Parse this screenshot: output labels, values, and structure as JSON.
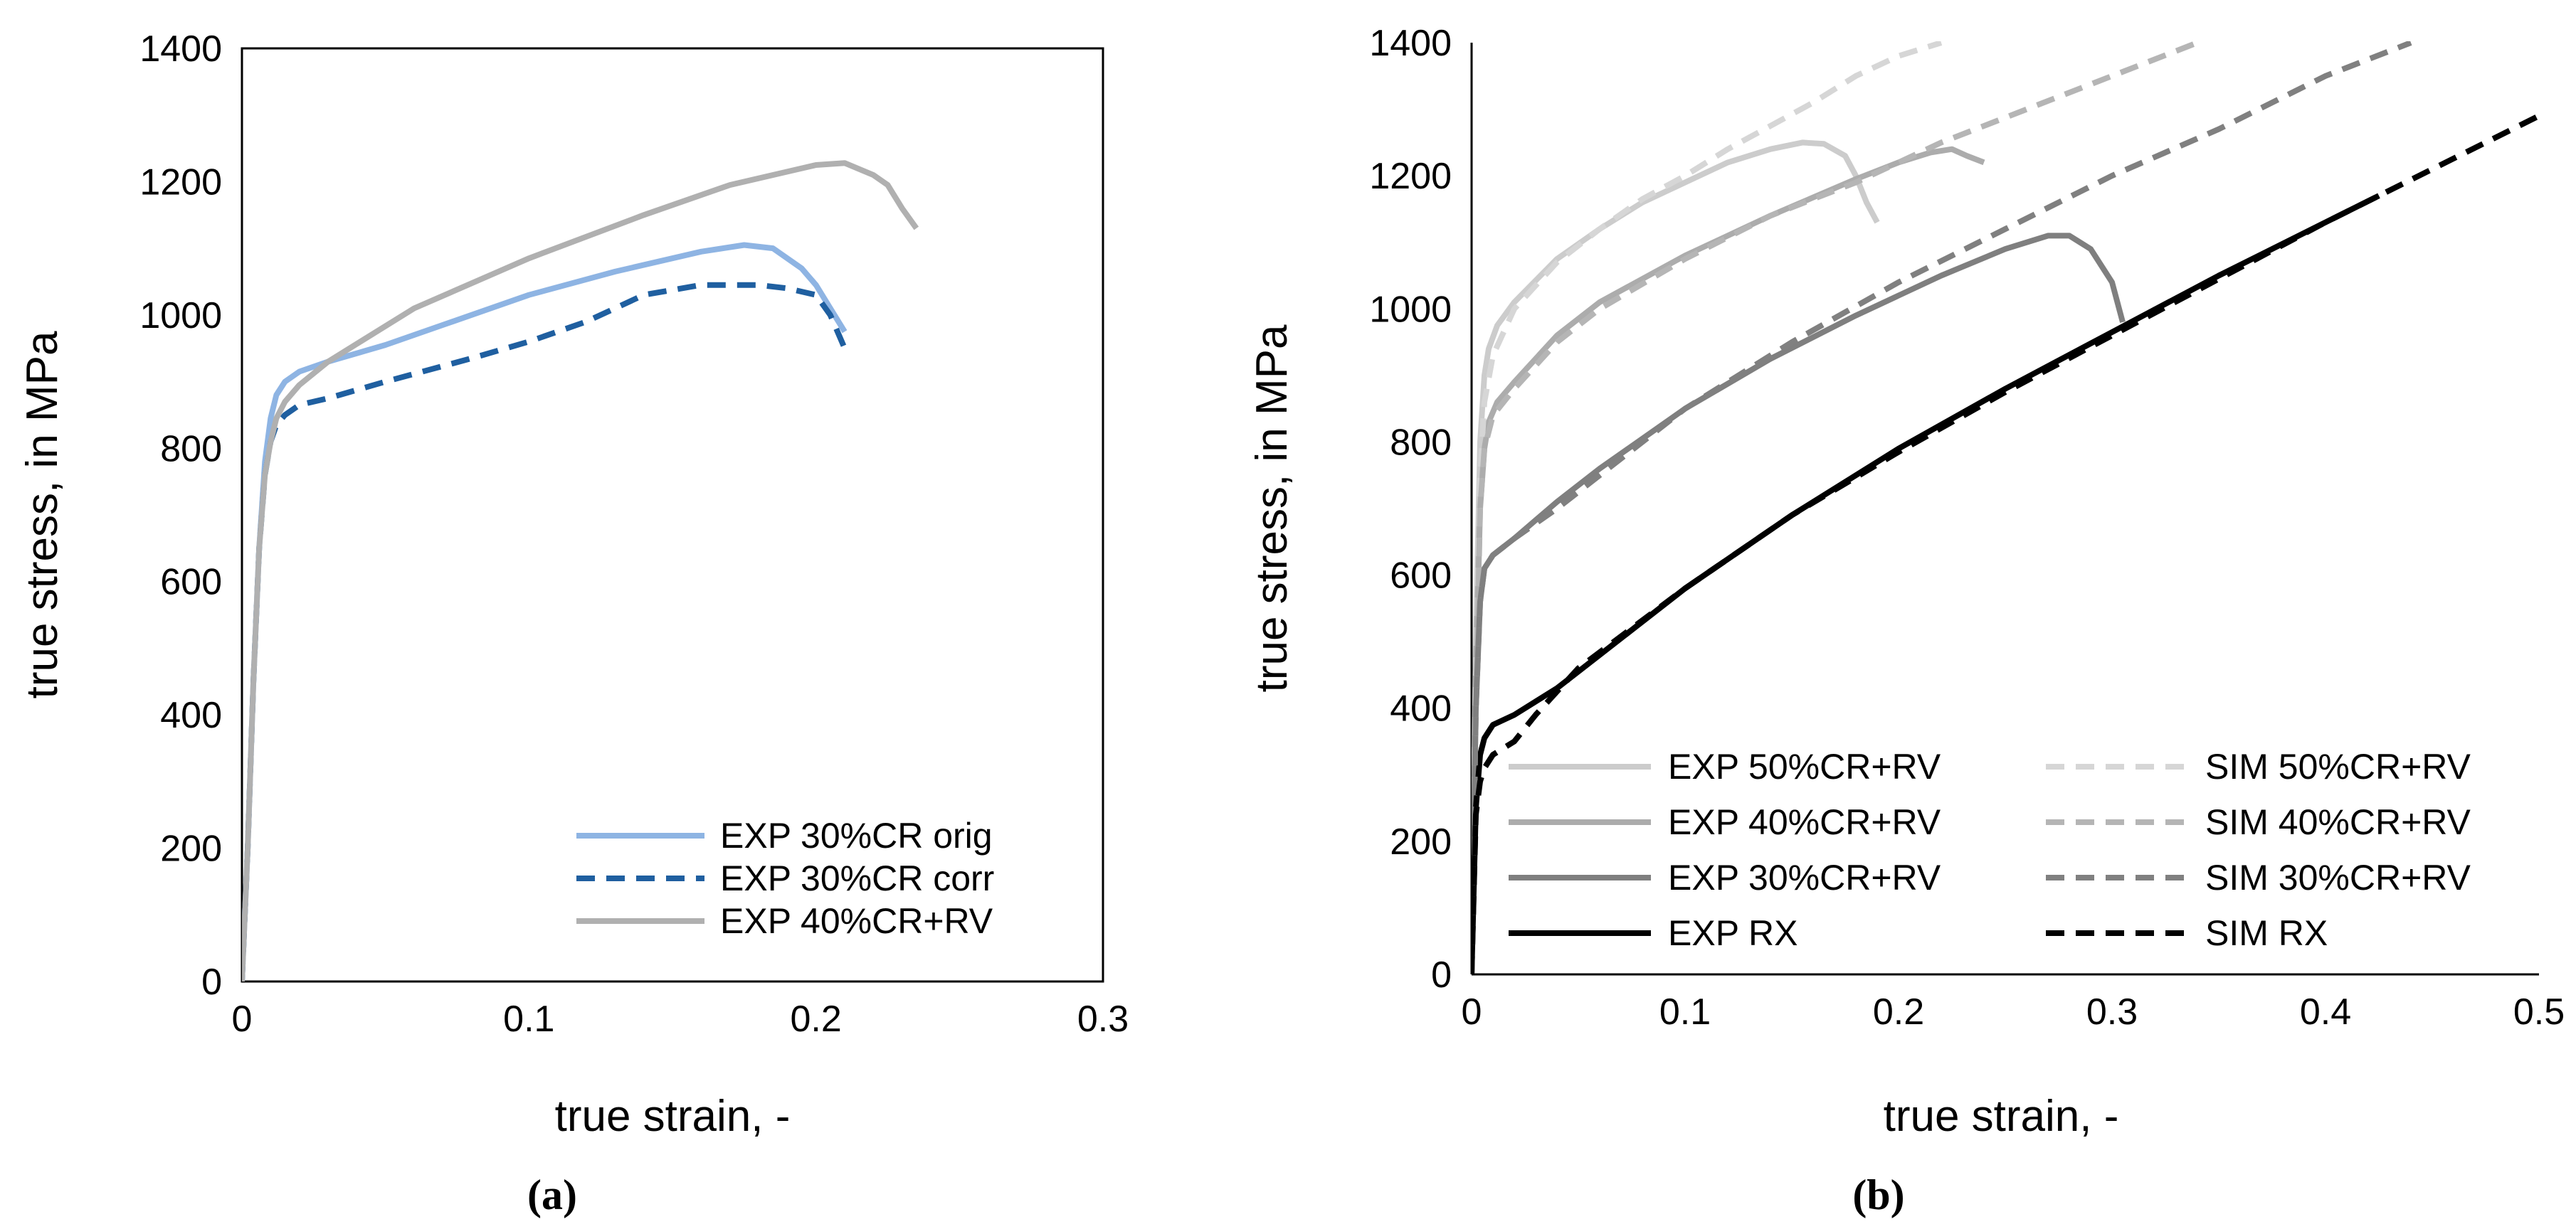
{
  "chart_data": [
    {
      "type": "line",
      "panel_label": "(a)",
      "xlabel": "true strain, -",
      "ylabel": "true stress, in MPa",
      "xlim": [
        0,
        0.3
      ],
      "ylim": [
        0,
        1400
      ],
      "xticks": [
        "0",
        "0.1",
        "0.2",
        "0.3"
      ],
      "yticks": [
        "0",
        "200",
        "400",
        "600",
        "800",
        "1000",
        "1200",
        "1400"
      ],
      "grid": false,
      "legend": "bottom-right",
      "series": [
        {
          "name": "EXP 30%CR orig",
          "color": "#8eb4e3",
          "dash": "solid",
          "x": [
            0,
            0.002,
            0.004,
            0.006,
            0.008,
            0.01,
            0.012,
            0.015,
            0.02,
            0.03,
            0.05,
            0.07,
            0.1,
            0.13,
            0.16,
            0.175,
            0.185,
            0.195,
            0.2,
            0.205,
            0.21
          ],
          "y": [
            0,
            200,
            450,
            650,
            780,
            845,
            880,
            900,
            915,
            930,
            955,
            985,
            1030,
            1065,
            1095,
            1105,
            1100,
            1070,
            1045,
            1010,
            975
          ]
        },
        {
          "name": "EXP 30%CR corr",
          "color": "#1f5fa0",
          "dash": "dashed",
          "x": [
            0,
            0.002,
            0.004,
            0.006,
            0.008,
            0.01,
            0.012,
            0.015,
            0.02,
            0.03,
            0.05,
            0.08,
            0.1,
            0.12,
            0.14,
            0.16,
            0.18,
            0.19,
            0.2,
            0.205,
            0.21
          ],
          "y": [
            0,
            200,
            450,
            650,
            760,
            810,
            835,
            850,
            865,
            875,
            900,
            935,
            960,
            990,
            1030,
            1045,
            1045,
            1040,
            1030,
            1000,
            950
          ]
        },
        {
          "name": "EXP 40%CR+RV",
          "color": "#b0b0b0",
          "dash": "solid",
          "x": [
            0,
            0.002,
            0.004,
            0.006,
            0.008,
            0.01,
            0.012,
            0.015,
            0.02,
            0.03,
            0.06,
            0.1,
            0.14,
            0.17,
            0.19,
            0.2,
            0.21,
            0.22,
            0.225,
            0.23,
            0.235
          ],
          "y": [
            0,
            200,
            450,
            650,
            760,
            810,
            845,
            870,
            895,
            930,
            1010,
            1085,
            1150,
            1195,
            1215,
            1225,
            1228,
            1210,
            1195,
            1160,
            1130
          ]
        }
      ]
    },
    {
      "type": "line",
      "panel_label": "(b)",
      "xlabel": "true strain, -",
      "ylabel": "true stress, in MPa",
      "xlim": [
        0,
        0.5
      ],
      "ylim": [
        0,
        1400
      ],
      "xticks": [
        "0",
        "0.1",
        "0.2",
        "0.3",
        "0.4",
        "0.5"
      ],
      "yticks": [
        "0",
        "200",
        "400",
        "600",
        "800",
        "1000",
        "1200",
        "1400"
      ],
      "grid": false,
      "legend": "bottom-left",
      "series": [
        {
          "name": "EXP 50%CR+RV",
          "color": "#cccccc",
          "dash": "solid",
          "x": [
            0,
            0.002,
            0.004,
            0.006,
            0.008,
            0.012,
            0.02,
            0.04,
            0.06,
            0.08,
            0.1,
            0.12,
            0.14,
            0.155,
            0.165,
            0.175,
            0.18,
            0.185,
            0.19
          ],
          "y": [
            0,
            500,
            800,
            900,
            940,
            975,
            1010,
            1075,
            1120,
            1160,
            1190,
            1220,
            1240,
            1250,
            1248,
            1230,
            1200,
            1160,
            1130
          ]
        },
        {
          "name": "EXP 40%CR+RV",
          "color": "#acacac",
          "dash": "solid",
          "x": [
            0,
            0.002,
            0.004,
            0.006,
            0.008,
            0.012,
            0.02,
            0.04,
            0.06,
            0.1,
            0.14,
            0.18,
            0.2,
            0.215,
            0.225,
            0.232,
            0.24
          ],
          "y": [
            0,
            450,
            700,
            790,
            830,
            860,
            890,
            960,
            1010,
            1080,
            1140,
            1195,
            1220,
            1235,
            1240,
            1230,
            1220
          ]
        },
        {
          "name": "EXP 30%CR+RV",
          "color": "#7f7f7f",
          "dash": "solid",
          "x": [
            0,
            0.002,
            0.004,
            0.006,
            0.01,
            0.02,
            0.04,
            0.06,
            0.1,
            0.14,
            0.18,
            0.22,
            0.25,
            0.27,
            0.28,
            0.29,
            0.3,
            0.305
          ],
          "y": [
            0,
            400,
            560,
            610,
            630,
            655,
            710,
            760,
            850,
            925,
            990,
            1050,
            1090,
            1110,
            1110,
            1090,
            1040,
            980
          ]
        },
        {
          "name": "EXP RX",
          "color": "#000000",
          "dash": "solid",
          "x": [
            0,
            0.002,
            0.004,
            0.006,
            0.01,
            0.02,
            0.04,
            0.06,
            0.1,
            0.15,
            0.2,
            0.25,
            0.3,
            0.35,
            0.4,
            0.425
          ],
          "y": [
            0,
            250,
            330,
            355,
            375,
            390,
            430,
            480,
            580,
            690,
            790,
            880,
            965,
            1050,
            1130,
            1170
          ]
        },
        {
          "name": "SIM 50%CR+RV",
          "color": "#d6d6d6",
          "dash": "dashed",
          "x": [
            0,
            0.002,
            0.004,
            0.006,
            0.01,
            0.02,
            0.04,
            0.06,
            0.08,
            0.1,
            0.12,
            0.14,
            0.16,
            0.18,
            0.2,
            0.22
          ],
          "y": [
            0,
            450,
            750,
            860,
            930,
            1000,
            1070,
            1120,
            1165,
            1200,
            1240,
            1275,
            1310,
            1350,
            1380,
            1400
          ]
        },
        {
          "name": "SIM 40%CR+RV",
          "color": "#b5b5b5",
          "dash": "dashed",
          "x": [
            0,
            0.002,
            0.004,
            0.006,
            0.01,
            0.02,
            0.04,
            0.06,
            0.1,
            0.14,
            0.18,
            0.22,
            0.26,
            0.3,
            0.34
          ],
          "y": [
            0,
            400,
            700,
            790,
            840,
            880,
            950,
            1000,
            1075,
            1140,
            1190,
            1250,
            1300,
            1350,
            1400
          ]
        },
        {
          "name": "SIM 30%CR+RV",
          "color": "#808080",
          "dash": "dashed",
          "x": [
            0,
            0.002,
            0.004,
            0.006,
            0.01,
            0.02,
            0.04,
            0.06,
            0.1,
            0.15,
            0.2,
            0.25,
            0.3,
            0.35,
            0.4,
            0.44
          ],
          "y": [
            0,
            400,
            560,
            610,
            630,
            655,
            700,
            750,
            850,
            950,
            1040,
            1120,
            1200,
            1270,
            1350,
            1400
          ]
        },
        {
          "name": "SIM RX",
          "color": "#000000",
          "dash": "dashed",
          "x": [
            0,
            0.002,
            0.004,
            0.006,
            0.01,
            0.02,
            0.03,
            0.05,
            0.1,
            0.15,
            0.2,
            0.25,
            0.3,
            0.35,
            0.4,
            0.45,
            0.5
          ],
          "y": [
            0,
            240,
            290,
            310,
            330,
            350,
            390,
            460,
            580,
            690,
            785,
            875,
            960,
            1045,
            1130,
            1210,
            1290
          ]
        }
      ]
    }
  ]
}
